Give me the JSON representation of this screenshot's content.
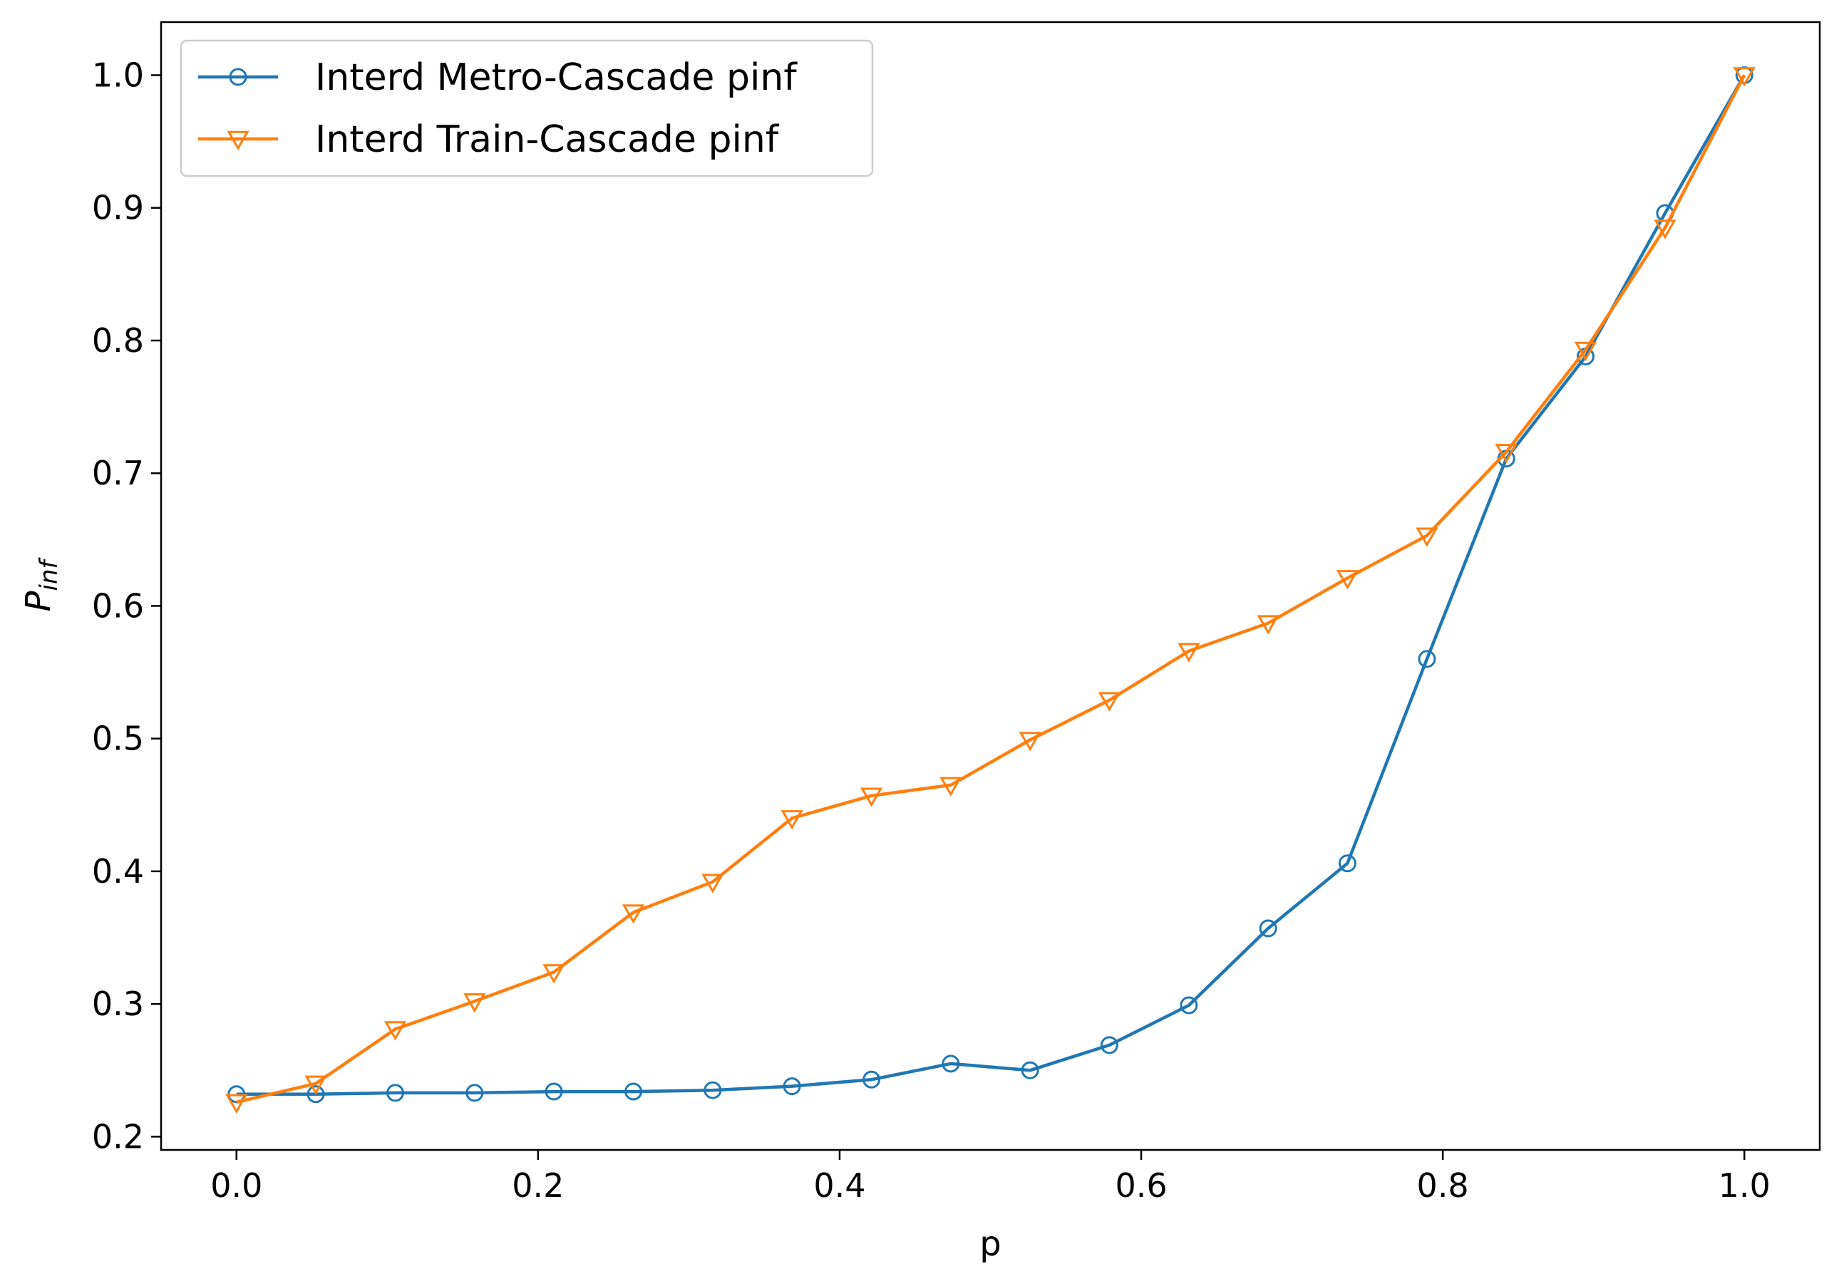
{
  "chart_data": {
    "type": "line",
    "title": "",
    "xlabel": "p",
    "ylabel": {
      "base": "P",
      "subscript": "inf"
    },
    "xlim": [
      -0.05,
      1.05
    ],
    "ylim": [
      0.19,
      1.04
    ],
    "x_ticks": [
      0.0,
      0.2,
      0.4,
      0.6,
      0.8,
      1.0
    ],
    "x_tick_labels": [
      "0.0",
      "0.2",
      "0.4",
      "0.6",
      "0.8",
      "1.0"
    ],
    "y_ticks": [
      0.2,
      0.3,
      0.4,
      0.5,
      0.6,
      0.7,
      0.8,
      0.9,
      1.0
    ],
    "y_tick_labels": [
      "0.2",
      "0.3",
      "0.4",
      "0.5",
      "0.6",
      "0.7",
      "0.8",
      "0.9",
      "1.0"
    ],
    "grid": false,
    "legend_position": "top-left",
    "x": [
      0.0,
      0.0526,
      0.1053,
      0.1579,
      0.2105,
      0.2632,
      0.3158,
      0.3684,
      0.4211,
      0.4737,
      0.5263,
      0.5789,
      0.6316,
      0.6842,
      0.7368,
      0.7895,
      0.8421,
      0.8947,
      0.9474,
      1.0
    ],
    "series": [
      {
        "name": "Interd Metro-Cascade pinf",
        "color": "#1f77b4",
        "marker": "circle",
        "values": [
          0.232,
          0.232,
          0.233,
          0.233,
          0.234,
          0.234,
          0.235,
          0.238,
          0.243,
          0.255,
          0.25,
          0.269,
          0.299,
          0.357,
          0.406,
          0.56,
          0.711,
          0.788,
          0.896,
          1.0
        ]
      },
      {
        "name": "Interd Train-Cascade pinf",
        "color": "#ff7f0e",
        "marker": "triangle-down",
        "values": [
          0.226,
          0.24,
          0.281,
          0.302,
          0.324,
          0.369,
          0.392,
          0.44,
          0.457,
          0.465,
          0.499,
          0.529,
          0.566,
          0.587,
          0.621,
          0.653,
          0.716,
          0.793,
          0.885,
          1.0
        ]
      }
    ]
  }
}
